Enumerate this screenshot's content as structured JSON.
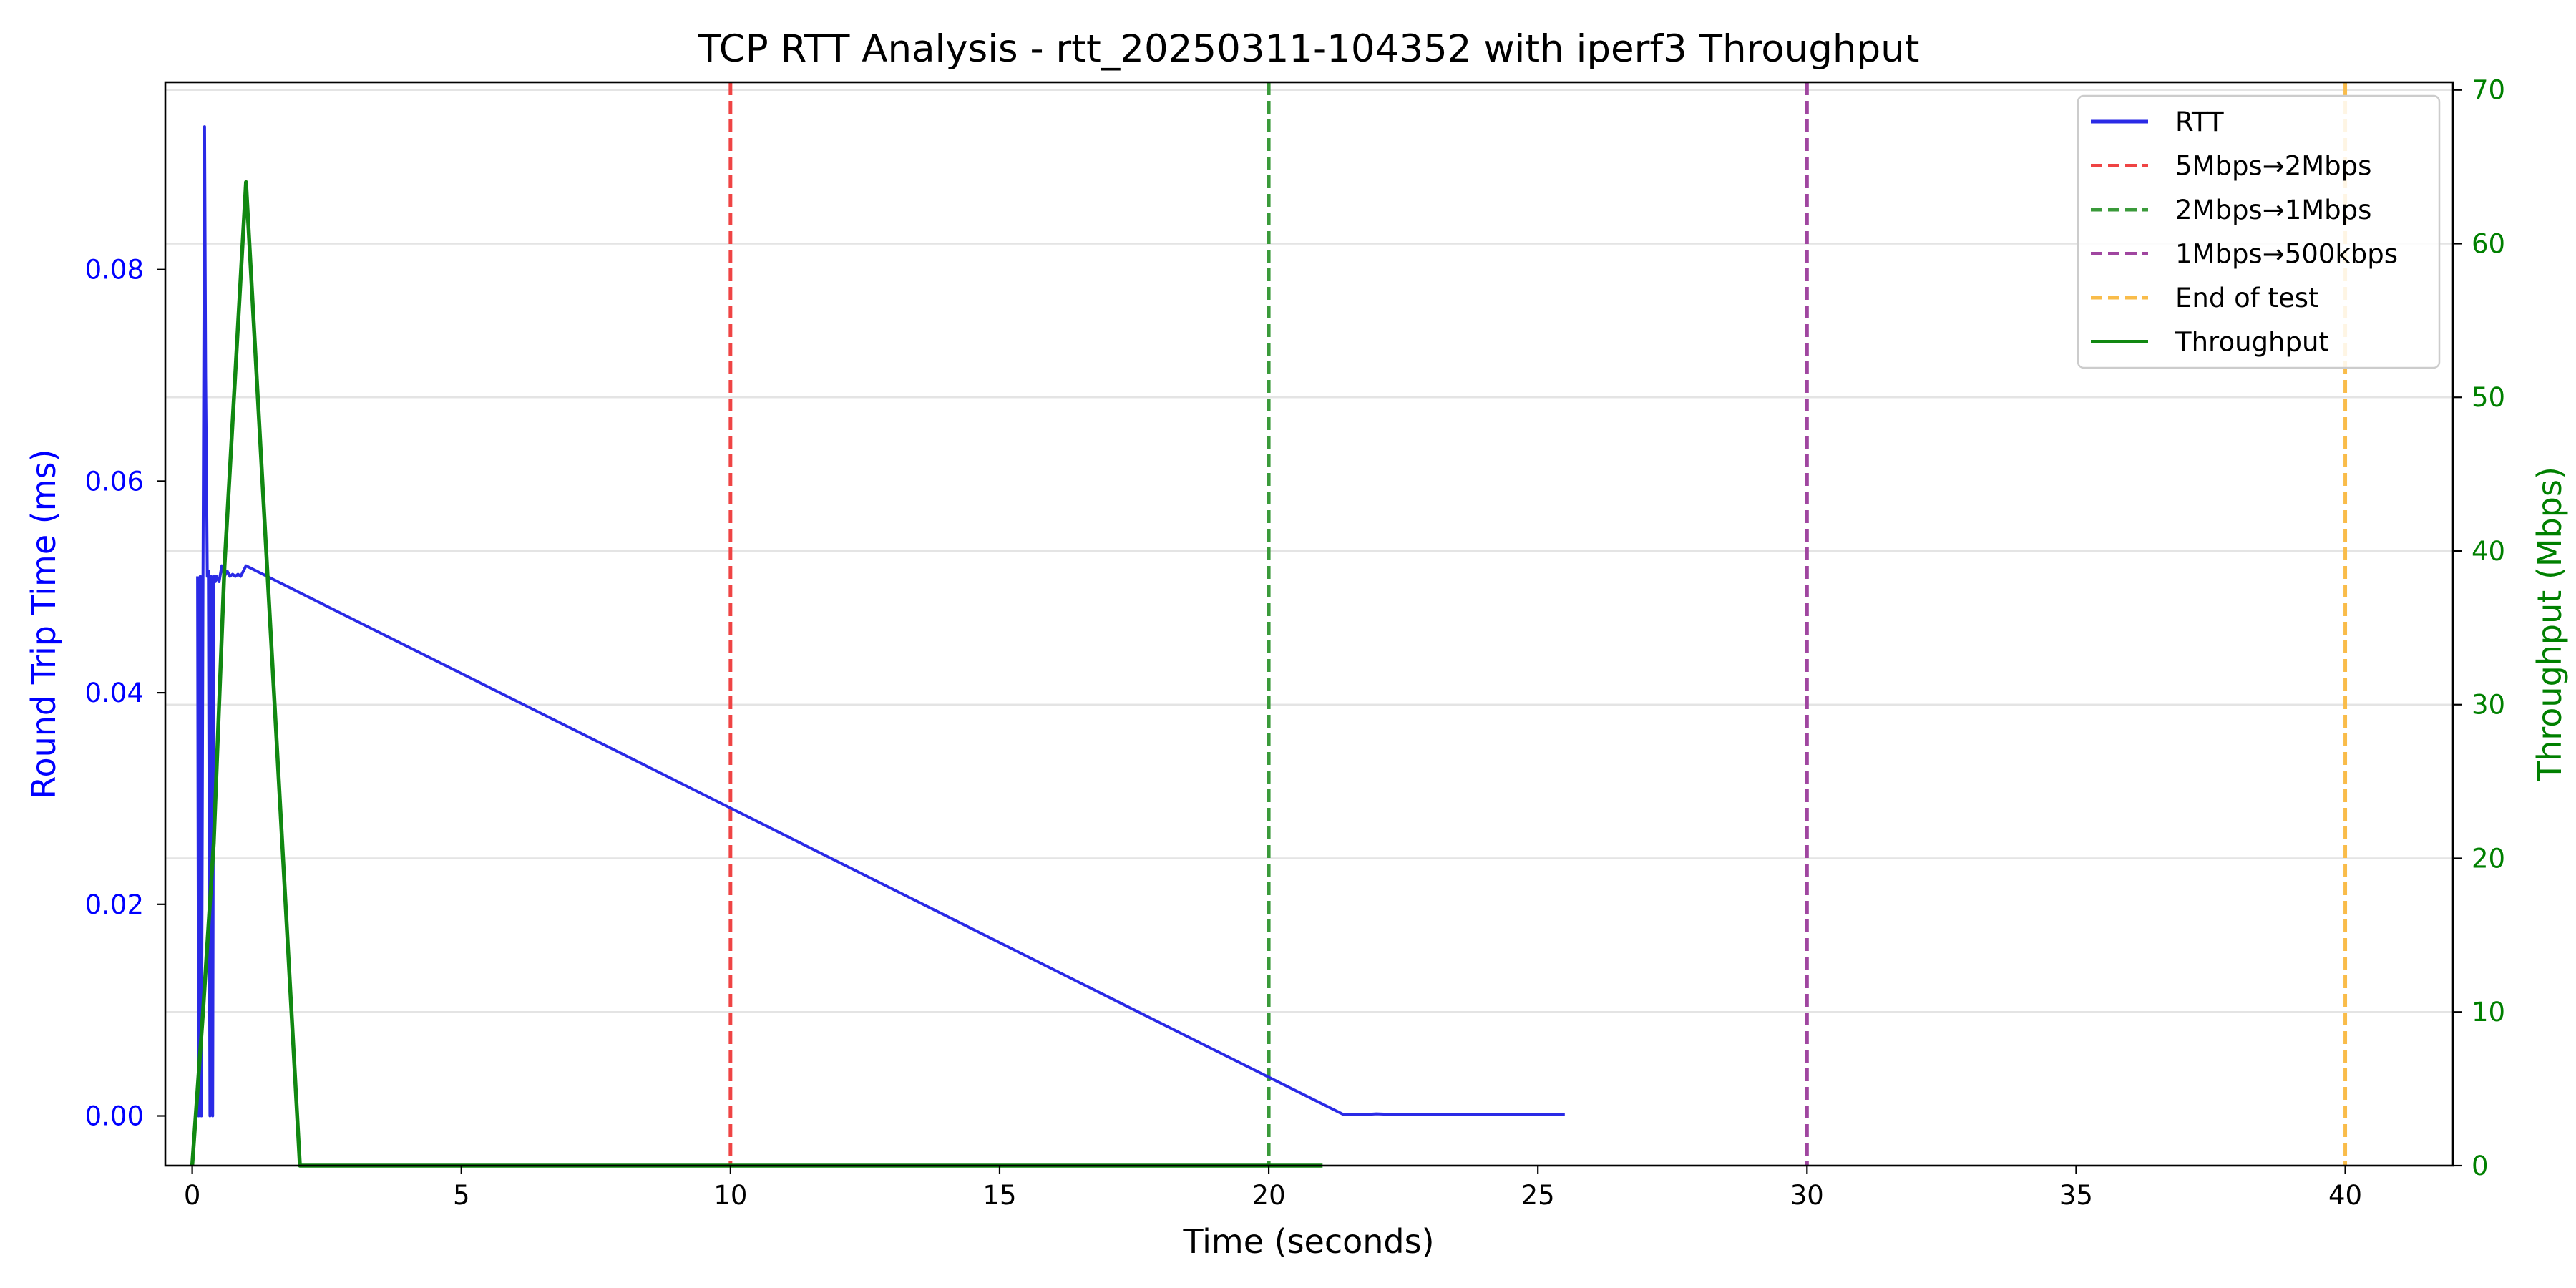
{
  "chart_data": {
    "type": "line",
    "title": "TCP RTT Analysis - rtt_20250311-104352 with iperf3 Throughput",
    "xlabel": "Time (seconds)",
    "ylabel_left": "Round Trip Time (ms)",
    "ylabel_right": "Throughput (Mbps)",
    "xlim": [
      -0.5,
      42.0
    ],
    "ylim_left": [
      -0.0047,
      0.0977
    ],
    "ylim_right": [
      0,
      70.5
    ],
    "x_ticks": [
      0,
      5,
      10,
      15,
      20,
      25,
      30,
      35,
      40
    ],
    "y_left_ticks": [
      0.0,
      0.02,
      0.04,
      0.06,
      0.08
    ],
    "y_right_ticks": [
      0,
      10,
      20,
      30,
      40,
      50,
      60,
      70
    ],
    "grid": "horizontal lines at right-axis ticks",
    "legend_position": "top-right",
    "colors": {
      "rtt": "#2a2ae6",
      "throughput": "#118811",
      "left_axis": "#0000ff",
      "right_axis": "#008000"
    },
    "series": [
      {
        "name": "RTT",
        "axis": "left",
        "color": "#2a2ae6",
        "x": [
          0.1,
          0.12,
          0.15,
          0.17,
          0.2,
          0.23,
          0.25,
          0.28,
          0.3,
          0.33,
          0.35,
          0.38,
          0.4,
          0.43,
          0.45,
          0.5,
          0.55,
          0.6,
          0.65,
          0.7,
          0.75,
          0.8,
          0.85,
          0.9,
          0.95,
          1.0,
          21.4,
          21.7,
          22.0,
          22.5,
          25.5
        ],
        "y": [
          0.051,
          0.0,
          0.051,
          0.0,
          0.051,
          0.0935,
          0.07,
          0.051,
          0.0515,
          0.0,
          0.051,
          0.0,
          0.051,
          0.0505,
          0.051,
          0.0505,
          0.052,
          0.051,
          0.0515,
          0.051,
          0.0512,
          0.051,
          0.0512,
          0.051,
          0.0515,
          0.052,
          0.0001,
          0.0001,
          0.0002,
          0.0001,
          0.0001
        ]
      },
      {
        "name": "Throughput",
        "axis": "right",
        "color": "#118811",
        "x": [
          0.0,
          0.2,
          0.4,
          0.6,
          1.0,
          2.0,
          21.0
        ],
        "y": [
          0,
          10,
          21,
          39,
          64,
          0,
          0
        ]
      }
    ],
    "vlines": [
      {
        "x": 10,
        "label": "5Mbps→2Mbps",
        "color": "#ef4444"
      },
      {
        "x": 20,
        "label": "2Mbps→1Mbps",
        "color": "#3a9a3a"
      },
      {
        "x": 30,
        "label": "1Mbps→500kbps",
        "color": "#a046a0"
      },
      {
        "x": 40,
        "label": "End of test",
        "color": "#f9bc4a"
      }
    ],
    "legend": [
      {
        "label": "RTT",
        "style": "solid",
        "color": "#2a2ae6"
      },
      {
        "label": "5Mbps→2Mbps",
        "style": "dashed",
        "color": "#ef4444"
      },
      {
        "label": "2Mbps→1Mbps",
        "style": "dashed",
        "color": "#3a9a3a"
      },
      {
        "label": "1Mbps→500kbps",
        "style": "dashed",
        "color": "#a046a0"
      },
      {
        "label": "End of test",
        "style": "dashed",
        "color": "#f9bc4a"
      },
      {
        "label": "Throughput",
        "style": "solid",
        "color": "#118811"
      }
    ]
  }
}
